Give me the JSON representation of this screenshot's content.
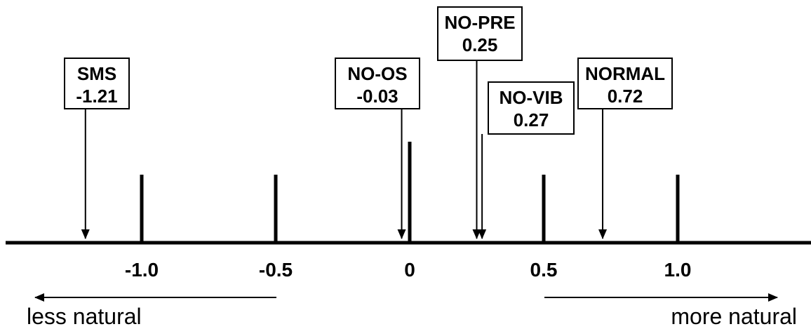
{
  "scale": {
    "ticks": [
      {
        "value": -1.0,
        "label": "-1.0"
      },
      {
        "value": -0.5,
        "label": "-0.5"
      },
      {
        "value": 0,
        "label": "0"
      },
      {
        "value": 0.5,
        "label": "0.5"
      },
      {
        "value": 1.0,
        "label": "1.0"
      }
    ]
  },
  "conditions": [
    {
      "name": "SMS",
      "score_label": "-1.21",
      "value": -1.21
    },
    {
      "name": "NO-OS",
      "score_label": "-0.03",
      "value": -0.03
    },
    {
      "name": "NO-PRE",
      "score_label": "0.25",
      "value": 0.25
    },
    {
      "name": "NO-VIB",
      "score_label": "0.27",
      "value": 0.27
    },
    {
      "name": "NORMAL",
      "score_label": "0.72",
      "value": 0.72
    }
  ],
  "directions": {
    "left_label": "less natural",
    "right_label": "more natural"
  }
}
